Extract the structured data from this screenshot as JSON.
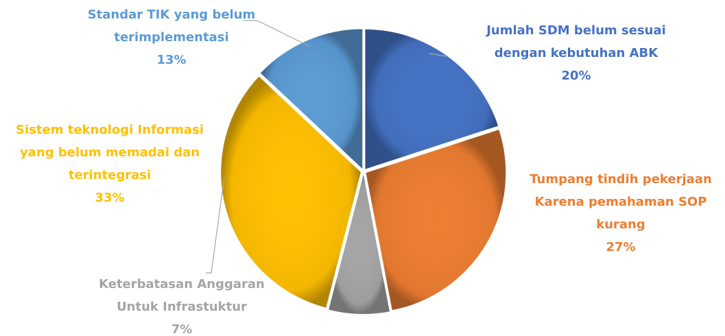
{
  "chart_data": {
    "type": "pie",
    "categories": [
      [
        "Jumlah SDM belum sesuai",
        "dengan kebutuhan ABK"
      ],
      [
        "Tumpang tindih pekerjaan",
        "Karena pemahaman SOP",
        "kurang"
      ],
      [
        "Keterbatasan Anggaran",
        "Untuk Infrastuktur"
      ],
      [
        "Sistem teknologi Informasi",
        "yang belum memadai dan",
        "terintegrasi"
      ],
      [
        "Standar TIK yang belum",
        "terimplementasi"
      ]
    ],
    "values": [
      20,
      27,
      7,
      33,
      13
    ],
    "value_labels": [
      "20%",
      "27%",
      "7%",
      "33%",
      "13%"
    ],
    "colors": [
      "#4472c4",
      "#ed7d31",
      "#a5a5a5",
      "#ffc000",
      "#5b9bd5"
    ]
  }
}
